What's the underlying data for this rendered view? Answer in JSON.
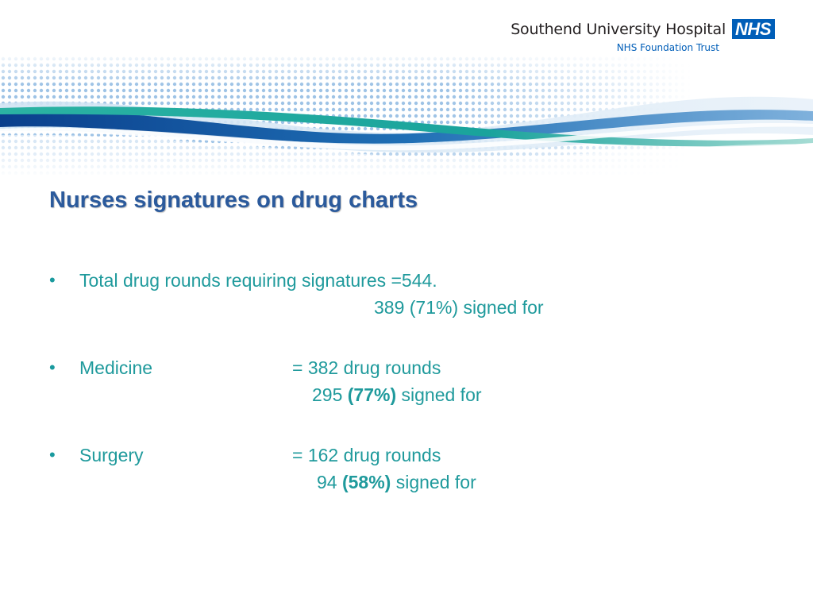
{
  "header": {
    "hospital_name": "Southend University Hospital",
    "nhs_badge": "NHS",
    "trust_name": "NHS Foundation Trust"
  },
  "title": "Nurses signatures on drug charts",
  "bullets": [
    {
      "label": "Total drug rounds requiring signatures =544.",
      "detail": "389 (71%) signed for"
    },
    {
      "label": "Medicine",
      "value": "= 382 drug rounds",
      "detail_count": "295",
      "detail_percent": "(77%)",
      "detail_suffix": "signed for"
    },
    {
      "label": "Surgery",
      "value": "= 162 drug rounds",
      "detail_count": "94",
      "detail_percent": "(58%)",
      "detail_suffix": "signed for"
    }
  ],
  "colors": {
    "title": "#2b5a9c",
    "body_text": "#1f9a9c",
    "nhs_blue": "#005eb8",
    "banner_blue": "#1f6fb5",
    "banner_teal": "#2bb3a3"
  },
  "icons": {
    "bullet": "bullet-dot-icon",
    "banner": "wave-banner-icon"
  }
}
